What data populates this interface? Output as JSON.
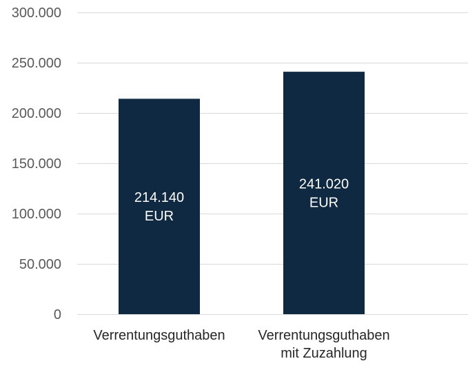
{
  "chart_data": {
    "type": "bar",
    "categories": [
      [
        "Verrentungsguthaben"
      ],
      [
        "Verrentungsguthaben",
        "mit Zuzahlung"
      ]
    ],
    "values": [
      214140,
      241020
    ],
    "data_labels": [
      [
        "214.140",
        "EUR"
      ],
      [
        "241.020",
        "EUR"
      ]
    ],
    "ylim": [
      0,
      300000
    ],
    "yticks": [
      "0",
      "50.000",
      "100.000",
      "150.000",
      "200.000",
      "250.000",
      "300.000"
    ],
    "ytick_values": [
      0,
      50000,
      100000,
      150000,
      200000,
      250000,
      300000
    ],
    "grid": true,
    "legend": "none",
    "colors": {
      "bar": "#0f2942",
      "grid": "#d9d9d9",
      "tick_text": "#595959",
      "category_text": "#262626",
      "label_text": "#ffffff"
    }
  }
}
